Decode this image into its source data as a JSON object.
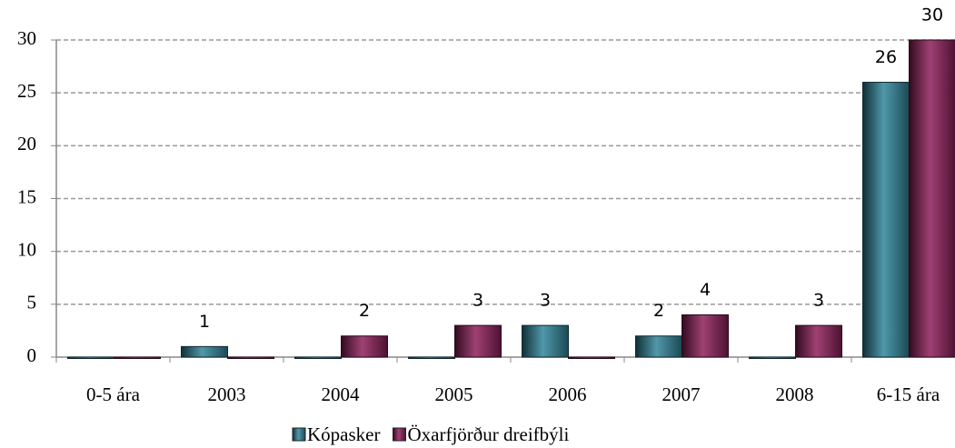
{
  "chart_data": {
    "type": "bar",
    "categories": [
      "0-5 ára",
      "2003",
      "2004",
      "2005",
      "2006",
      "2007",
      "2008",
      "6-15 ára"
    ],
    "series": [
      {
        "name": "Kópasker",
        "color": "#31869b",
        "values": [
          0,
          1,
          0,
          0,
          3,
          2,
          0,
          26
        ],
        "value_labels": [
          null,
          "1",
          null,
          null,
          "3",
          "2",
          null,
          "26"
        ]
      },
      {
        "name": "Öxarfjörður dreifbýli",
        "color": "#8e1f5a",
        "values": [
          0,
          0,
          2,
          3,
          0,
          4,
          3,
          30
        ],
        "value_labels": [
          null,
          null,
          "2",
          "3",
          null,
          "4",
          "3",
          "30"
        ]
      }
    ],
    "ylim": [
      0,
      30
    ],
    "yticks": [
      0,
      5,
      10,
      15,
      20,
      25,
      30
    ],
    "grid": true,
    "legend": "bottom"
  }
}
